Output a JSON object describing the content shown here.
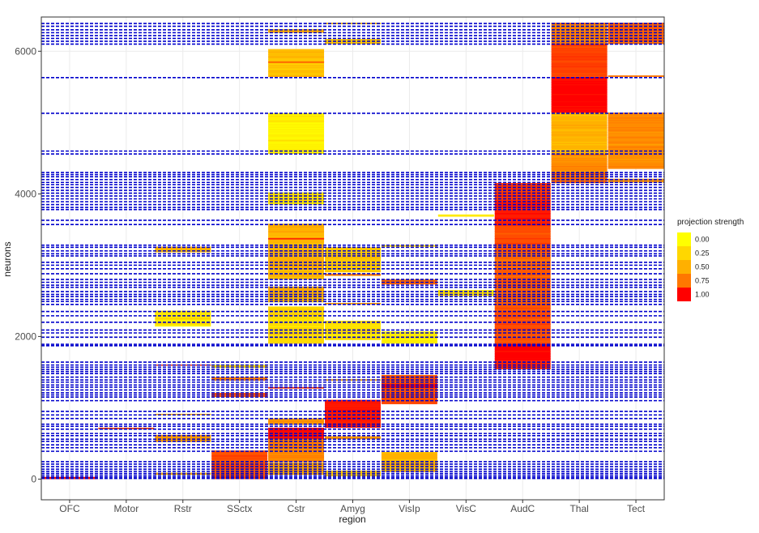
{
  "chart_data": {
    "type": "heatmap",
    "title": "",
    "xlabel": "region",
    "ylabel": "neurons",
    "categories": [
      "OFC",
      "Motor",
      "Rstr",
      "SSctx",
      "Cstr",
      "Amyg",
      "VisIp",
      "VisC",
      "AudC",
      "Thal",
      "Tect"
    ],
    "ylim": [
      -290,
      6480
    ],
    "yticks": [
      0,
      2000,
      4000,
      6000
    ],
    "ytick_labels": [
      "0",
      "2000",
      "4000",
      "6000"
    ],
    "grid": true,
    "legend": {
      "title": "projection strength",
      "placement": "right",
      "entries": [
        {
          "label": "0.00",
          "value": 0.0,
          "color": "#ffff00"
        },
        {
          "label": "0.25",
          "value": 0.25,
          "color": "#ffd700"
        },
        {
          "label": "0.50",
          "value": 0.5,
          "color": "#ffb000"
        },
        {
          "label": "0.75",
          "value": 0.75,
          "color": "#ff7700"
        },
        {
          "label": "1.00",
          "value": 1.0,
          "color": "#ff0000"
        }
      ]
    },
    "colors": {
      "low": "#ffff00",
      "high": "#ff0000",
      "boundary_lines": "#0000cc",
      "panel_border": "#333333",
      "grid": "#ebebeb"
    },
    "cluster_boundaries": [
      10,
      30,
      55,
      80,
      110,
      140,
      175,
      210,
      245,
      390,
      440,
      480,
      530,
      560,
      610,
      640,
      700,
      740,
      770,
      850,
      900,
      950,
      1100,
      1150,
      1180,
      1210,
      1250,
      1290,
      1320,
      1360,
      1390,
      1430,
      1480,
      1510,
      1540,
      1570,
      1600,
      1640,
      1870,
      1890,
      1990,
      2050,
      2090,
      2200,
      2290,
      2350,
      2450,
      2490,
      2520,
      2560,
      2590,
      2630,
      2690,
      2720,
      2760,
      2800,
      2880,
      2950,
      3000,
      3040,
      3130,
      3160,
      3200,
      3250,
      3280,
      3570,
      3630,
      3780,
      3810,
      3850,
      3890,
      3930,
      3970,
      4010,
      4050,
      4090,
      4130,
      4160,
      4200,
      4240,
      4270,
      4300,
      4560,
      4600,
      5130,
      5630,
      6100,
      6140,
      6180,
      6220,
      6260,
      6300,
      6350,
      6390
    ],
    "blocks": [
      {
        "region": "OFC",
        "y0": 0,
        "y1": 30,
        "strength": 0.9
      },
      {
        "region": "Motor",
        "y0": 700,
        "y1": 720,
        "strength": 0.8
      },
      {
        "region": "Rstr",
        "y0": 60,
        "y1": 90,
        "strength": 0.3
      },
      {
        "region": "Rstr",
        "y0": 520,
        "y1": 620,
        "strength": 0.4
      },
      {
        "region": "Rstr",
        "y0": 900,
        "y1": 915,
        "strength": 0.3
      },
      {
        "region": "Rstr",
        "y0": 1590,
        "y1": 1605,
        "strength": 0.8
      },
      {
        "region": "Rstr",
        "y0": 2140,
        "y1": 2360,
        "strength": 0.1
      },
      {
        "region": "Rstr",
        "y0": 3180,
        "y1": 3260,
        "strength": 0.3
      },
      {
        "region": "SSctx",
        "y0": 0,
        "y1": 400,
        "strength": 0.7
      },
      {
        "region": "SSctx",
        "y0": 1150,
        "y1": 1210,
        "strength": 0.7
      },
      {
        "region": "SSctx",
        "y0": 1380,
        "y1": 1430,
        "strength": 0.5
      },
      {
        "region": "SSctx",
        "y0": 1560,
        "y1": 1600,
        "strength": 0.15
      },
      {
        "region": "Cstr",
        "y0": 60,
        "y1": 230,
        "strength": 0.35
      },
      {
        "region": "Cstr",
        "y0": 240,
        "y1": 560,
        "strength": 0.5
      },
      {
        "region": "Cstr",
        "y0": 560,
        "y1": 720,
        "strength": 0.95
      },
      {
        "region": "Cstr",
        "y0": 760,
        "y1": 850,
        "strength": 0.4
      },
      {
        "region": "Cstr",
        "y0": 1270,
        "y1": 1290,
        "strength": 0.8
      },
      {
        "region": "Cstr",
        "y0": 1900,
        "y1": 2420,
        "strength": 0.15
      },
      {
        "region": "Cstr",
        "y0": 2480,
        "y1": 2700,
        "strength": 0.3
      },
      {
        "region": "Cstr",
        "y0": 2800,
        "y1": 3580,
        "strength": 0.3
      },
      {
        "region": "Cstr",
        "y0": 3360,
        "y1": 3380,
        "strength": 0.85
      },
      {
        "region": "Cstr",
        "y0": 3850,
        "y1": 4020,
        "strength": 0.1
      },
      {
        "region": "Cstr",
        "y0": 4560,
        "y1": 5130,
        "strength": 0.05
      },
      {
        "region": "Cstr",
        "y0": 5640,
        "y1": 6030,
        "strength": 0.25
      },
      {
        "region": "Cstr",
        "y0": 5840,
        "y1": 5855,
        "strength": 0.7
      },
      {
        "region": "Cstr",
        "y0": 6260,
        "y1": 6310,
        "strength": 0.3
      },
      {
        "region": "Amyg",
        "y0": 40,
        "y1": 120,
        "strength": 0.2
      },
      {
        "region": "Amyg",
        "y0": 560,
        "y1": 600,
        "strength": 0.4
      },
      {
        "region": "Amyg",
        "y0": 720,
        "y1": 1110,
        "strength": 0.9
      },
      {
        "region": "Amyg",
        "y0": 1380,
        "y1": 1400,
        "strength": 0.3
      },
      {
        "region": "Amyg",
        "y0": 1950,
        "y1": 2220,
        "strength": 0.1
      },
      {
        "region": "Amyg",
        "y0": 2450,
        "y1": 2470,
        "strength": 0.35
      },
      {
        "region": "Amyg",
        "y0": 2850,
        "y1": 2880,
        "strength": 0.5
      },
      {
        "region": "Amyg",
        "y0": 2900,
        "y1": 3250,
        "strength": 0.2
      },
      {
        "region": "Amyg",
        "y0": 6100,
        "y1": 6170,
        "strength": 0.2
      },
      {
        "region": "Amyg",
        "y0": 6380,
        "y1": 6400,
        "strength": 0.25
      },
      {
        "region": "VisIp",
        "y0": 100,
        "y1": 380,
        "strength": 0.3
      },
      {
        "region": "VisIp",
        "y0": 1050,
        "y1": 1460,
        "strength": 0.7
      },
      {
        "region": "VisIp",
        "y0": 1280,
        "y1": 1340,
        "strength": 0.95
      },
      {
        "region": "VisIp",
        "y0": 1900,
        "y1": 2070,
        "strength": 0.08
      },
      {
        "region": "VisIp",
        "y0": 2730,
        "y1": 2800,
        "strength": 0.6
      },
      {
        "region": "VisIp",
        "y0": 3260,
        "y1": 3280,
        "strength": 0.2
      },
      {
        "region": "VisC",
        "y0": 2570,
        "y1": 2650,
        "strength": 0.12
      },
      {
        "region": "VisC",
        "y0": 3680,
        "y1": 3710,
        "strength": 0.1
      },
      {
        "region": "AudC",
        "y0": 1540,
        "y1": 1660,
        "strength": 0.85
      },
      {
        "region": "AudC",
        "y0": 1660,
        "y1": 1900,
        "strength": 1.0
      },
      {
        "region": "AudC",
        "y0": 1900,
        "y1": 2350,
        "strength": 0.7
      },
      {
        "region": "AudC",
        "y0": 2350,
        "y1": 2950,
        "strength": 0.65
      },
      {
        "region": "AudC",
        "y0": 2950,
        "y1": 3180,
        "strength": 0.6
      },
      {
        "region": "AudC",
        "y0": 3180,
        "y1": 3550,
        "strength": 0.7
      },
      {
        "region": "AudC",
        "y0": 3550,
        "y1": 3900,
        "strength": 0.9
      },
      {
        "region": "AudC",
        "y0": 3900,
        "y1": 4150,
        "strength": 0.8
      },
      {
        "region": "Thal",
        "y0": 4150,
        "y1": 4300,
        "strength": 0.6
      },
      {
        "region": "Thal",
        "y0": 4300,
        "y1": 4560,
        "strength": 0.45
      },
      {
        "region": "Thal",
        "y0": 4560,
        "y1": 5140,
        "strength": 0.3
      },
      {
        "region": "Thal",
        "y0": 5140,
        "y1": 5640,
        "strength": 1.0
      },
      {
        "region": "Thal",
        "y0": 5640,
        "y1": 6100,
        "strength": 0.75
      },
      {
        "region": "Thal",
        "y0": 6100,
        "y1": 6400,
        "strength": 0.5
      },
      {
        "region": "Tect",
        "y0": 4160,
        "y1": 4210,
        "strength": 0.4
      },
      {
        "region": "Tect",
        "y0": 4350,
        "y1": 5140,
        "strength": 0.45
      },
      {
        "region": "Tect",
        "y0": 5640,
        "y1": 5660,
        "strength": 0.5
      },
      {
        "region": "Tect",
        "y0": 6100,
        "y1": 6400,
        "strength": 0.6
      }
    ]
  }
}
